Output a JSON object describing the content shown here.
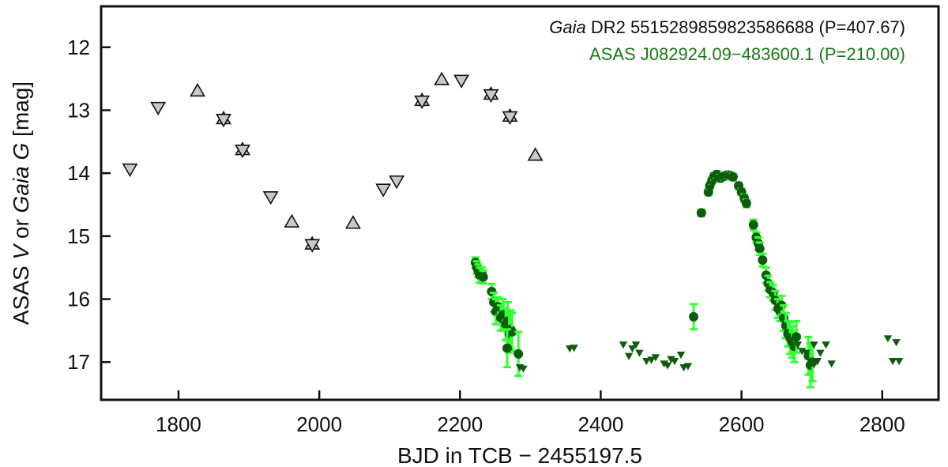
{
  "chart_data": {
    "type": "scatter",
    "xlabel": "BJD in TCB − 2455197.5",
    "ylabel_parts": [
      "ASAS ",
      "V",
      " or ",
      "Gaia G",
      " [mag]"
    ],
    "xlim": [
      1690,
      2880
    ],
    "ylim": [
      17.6,
      11.35
    ],
    "y_inverted": true,
    "xticks": [
      1800,
      2000,
      2200,
      2400,
      2600,
      2800
    ],
    "yticks": [
      12,
      13,
      14,
      15,
      16,
      17
    ],
    "legend": [
      {
        "italic": "Gaia",
        "text": " DR2 5515289859823586688 (P=407.67)",
        "color": "#111111"
      },
      {
        "italic": "",
        "text": "ASAS J082924.09−483600.1 (P=210.00)",
        "color": "#1a7a1a"
      }
    ],
    "colors": {
      "gaia_fill": "#c8c8c8",
      "gaia_edge": "#111111",
      "asas_fill": "#0d5c0d",
      "asas_err": "#33ff33",
      "asas_limit": "#0d5c0d"
    },
    "series": [
      {
        "name": "Gaia up",
        "marker": "triangle-up",
        "points": [
          [
            1827,
            12.7
          ],
          [
            1961,
            14.78
          ],
          [
            2048,
            14.8
          ],
          [
            2174,
            12.52
          ],
          [
            2307,
            13.72
          ]
        ]
      },
      {
        "name": "Gaia down",
        "marker": "triangle-down",
        "points": [
          [
            1731,
            13.93
          ],
          [
            1771,
            12.95
          ],
          [
            1931,
            14.37
          ],
          [
            2091,
            14.25
          ],
          [
            2110,
            14.12
          ],
          [
            2202,
            12.52
          ]
        ]
      },
      {
        "name": "Gaia star",
        "marker": "star",
        "points": [
          [
            1864,
            13.14
          ],
          [
            1891,
            13.63
          ],
          [
            1990,
            15.13
          ],
          [
            2146,
            12.85
          ],
          [
            2244,
            12.75
          ],
          [
            2271,
            13.1
          ]
        ]
      },
      {
        "name": "ASAS detections",
        "marker": "circle",
        "points": [
          [
            2222,
            15.42,
            0.08
          ],
          [
            2224,
            15.5,
            0.1
          ],
          [
            2226,
            15.55,
            0.1
          ],
          [
            2228,
            15.62,
            0.12
          ],
          [
            2231,
            15.6,
            0.1
          ],
          [
            2233,
            15.65,
            0.1
          ],
          [
            2245,
            15.88,
            0.12
          ],
          [
            2248,
            16.05,
            0.15
          ],
          [
            2251,
            16.2,
            0.2
          ],
          [
            2254,
            16.12,
            0.15
          ],
          [
            2258,
            16.3,
            0.2
          ],
          [
            2261,
            16.25,
            0.25
          ],
          [
            2265,
            16.4,
            0.25
          ],
          [
            2268,
            16.35,
            0.3
          ],
          [
            2270,
            16.55,
            0.3
          ],
          [
            2272,
            16.48,
            0.3
          ],
          [
            2274,
            16.52,
            0.3
          ],
          [
            2267,
            16.78,
            0.3
          ],
          [
            2283,
            16.87,
            0.35
          ],
          [
            2532,
            16.28,
            0.2
          ],
          [
            2543,
            14.63,
            0.05
          ],
          [
            2553,
            14.3,
            0.05
          ],
          [
            2555,
            14.2,
            0.05
          ],
          [
            2558,
            14.12,
            0.05
          ],
          [
            2561,
            14.05,
            0.05
          ],
          [
            2565,
            14.02,
            0.05
          ],
          [
            2570,
            14.08,
            0.05
          ],
          [
            2575,
            14.05,
            0.05
          ],
          [
            2580,
            14.03,
            0.05
          ],
          [
            2584,
            14.04,
            0.05
          ],
          [
            2588,
            14.06,
            0.05
          ],
          [
            2596,
            14.2,
            0.05
          ],
          [
            2600,
            14.3,
            0.05
          ],
          [
            2604,
            14.4,
            0.06
          ],
          [
            2607,
            14.48,
            0.06
          ],
          [
            2617,
            14.82,
            0.08
          ],
          [
            2621,
            15.02,
            0.08
          ],
          [
            2624,
            15.12,
            0.1
          ],
          [
            2626,
            15.2,
            0.1
          ],
          [
            2630,
            15.38,
            0.1
          ],
          [
            2635,
            15.62,
            0.12
          ],
          [
            2638,
            15.75,
            0.12
          ],
          [
            2641,
            15.85,
            0.12
          ],
          [
            2645,
            15.9,
            0.12
          ],
          [
            2648,
            16.02,
            0.15
          ],
          [
            2652,
            16.15,
            0.15
          ],
          [
            2655,
            16.2,
            0.15
          ],
          [
            2657,
            16.1,
            0.15
          ],
          [
            2660,
            16.3,
            0.2
          ],
          [
            2663,
            16.42,
            0.2
          ],
          [
            2666,
            16.55,
            0.2
          ],
          [
            2669,
            16.62,
            0.25
          ],
          [
            2672,
            16.68,
            0.25
          ],
          [
            2675,
            16.75,
            0.25
          ],
          [
            2678,
            16.6,
            0.25
          ],
          [
            2695,
            16.9,
            0.3
          ],
          [
            2698,
            17.05,
            0.35
          ],
          [
            2701,
            17.0,
            0.3
          ]
        ]
      },
      {
        "name": "ASAS upper limits",
        "marker": "triangle-down-small",
        "points": [
          [
            2285,
            17.08
          ],
          [
            2290,
            17.1
          ],
          [
            2356,
            16.78
          ],
          [
            2362,
            16.77
          ],
          [
            2432,
            16.72
          ],
          [
            2440,
            16.9
          ],
          [
            2445,
            16.78
          ],
          [
            2450,
            16.72
          ],
          [
            2455,
            16.85
          ],
          [
            2465,
            16.98
          ],
          [
            2472,
            16.96
          ],
          [
            2478,
            16.92
          ],
          [
            2490,
            17.02
          ],
          [
            2495,
            17.05
          ],
          [
            2500,
            16.95
          ],
          [
            2505,
            16.98
          ],
          [
            2514,
            16.88
          ],
          [
            2518,
            17.08
          ],
          [
            2524,
            17.06
          ],
          [
            2680,
            16.72
          ],
          [
            2686,
            16.82
          ],
          [
            2692,
            16.85
          ],
          [
            2703,
            16.72
          ],
          [
            2708,
            16.98
          ],
          [
            2712,
            16.85
          ],
          [
            2720,
            16.72
          ],
          [
            2728,
            17.02
          ],
          [
            2808,
            16.62
          ],
          [
            2815,
            16.98
          ],
          [
            2820,
            16.68
          ],
          [
            2824,
            16.98
          ]
        ]
      }
    ]
  }
}
